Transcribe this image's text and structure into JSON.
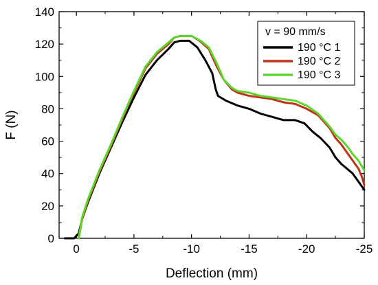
{
  "chart_data": {
    "type": "line",
    "xlabel": "Deflection (mm)",
    "ylabel": "F (N)",
    "xlim": [
      1.5,
      -25
    ],
    "ylim": [
      0,
      140
    ],
    "x_ticks": [
      0,
      -5,
      -10,
      -15,
      -20,
      -25
    ],
    "x_tick_labels": [
      "0",
      "-5",
      "-10",
      "-15",
      "-20",
      "-25"
    ],
    "y_ticks": [
      0,
      20,
      40,
      60,
      80,
      100,
      120,
      140
    ],
    "y_tick_labels": [
      "0",
      "20",
      "40",
      "60",
      "80",
      "100",
      "120",
      "140"
    ],
    "grid": false,
    "legend": {
      "title": "v = 90 mm/s",
      "placement": "top-right",
      "entries": [
        "190 °C 1",
        "190 °C 2",
        "190 °C 3"
      ]
    },
    "series": [
      {
        "name": "190 °C 1",
        "color": "#000000",
        "points": [
          [
            1.0,
            0
          ],
          [
            0.2,
            0
          ],
          [
            -0.2,
            3
          ],
          [
            -0.5,
            12
          ],
          [
            -1,
            22
          ],
          [
            -2,
            40
          ],
          [
            -3,
            56
          ],
          [
            -4,
            72
          ],
          [
            -5,
            87
          ],
          [
            -6,
            101
          ],
          [
            -7,
            110
          ],
          [
            -8,
            117
          ],
          [
            -8.5,
            121
          ],
          [
            -9,
            122
          ],
          [
            -9.8,
            122
          ],
          [
            -10.5,
            118
          ],
          [
            -11.2,
            110
          ],
          [
            -11.8,
            102
          ],
          [
            -12.1,
            92
          ],
          [
            -12.3,
            88
          ],
          [
            -13,
            85
          ],
          [
            -14,
            82
          ],
          [
            -15,
            80
          ],
          [
            -16,
            77
          ],
          [
            -17,
            75
          ],
          [
            -18,
            73
          ],
          [
            -19,
            73
          ],
          [
            -19.8,
            71
          ],
          [
            -20.5,
            66
          ],
          [
            -21.2,
            62
          ],
          [
            -22,
            56
          ],
          [
            -22.5,
            50
          ],
          [
            -23,
            46
          ],
          [
            -23.5,
            43
          ],
          [
            -24,
            40
          ],
          [
            -24.5,
            35
          ],
          [
            -25,
            30
          ]
        ]
      },
      {
        "name": "190 °C 2",
        "color": "#c0311c",
        "points": [
          [
            -0.2,
            0
          ],
          [
            -0.5,
            12
          ],
          [
            -1,
            23
          ],
          [
            -2,
            41
          ],
          [
            -3,
            57
          ],
          [
            -4,
            74
          ],
          [
            -5,
            90
          ],
          [
            -6,
            105
          ],
          [
            -7,
            114
          ],
          [
            -8,
            120
          ],
          [
            -8.5,
            124
          ],
          [
            -9,
            125
          ],
          [
            -10,
            125
          ],
          [
            -10.7,
            122
          ],
          [
            -11.5,
            117
          ],
          [
            -12.2,
            106
          ],
          [
            -12.8,
            98
          ],
          [
            -13.5,
            92
          ],
          [
            -14,
            90
          ],
          [
            -15,
            88
          ],
          [
            -16,
            87
          ],
          [
            -17,
            86
          ],
          [
            -18,
            84
          ],
          [
            -19,
            83
          ],
          [
            -20,
            80
          ],
          [
            -21,
            76
          ],
          [
            -22,
            68
          ],
          [
            -22.5,
            62
          ],
          [
            -23,
            58
          ],
          [
            -23.5,
            53
          ],
          [
            -24,
            48
          ],
          [
            -24.5,
            43
          ],
          [
            -24.8,
            38
          ],
          [
            -25,
            33
          ]
        ]
      },
      {
        "name": "190 °C 3",
        "color": "#5dd62c",
        "points": [
          [
            -0.2,
            0
          ],
          [
            -0.5,
            13
          ],
          [
            -1,
            24
          ],
          [
            -2,
            42
          ],
          [
            -3,
            58
          ],
          [
            -4,
            75
          ],
          [
            -5,
            91
          ],
          [
            -6,
            106
          ],
          [
            -7,
            115
          ],
          [
            -8,
            121
          ],
          [
            -8.5,
            124
          ],
          [
            -9,
            125
          ],
          [
            -10,
            125
          ],
          [
            -10.8,
            122
          ],
          [
            -11.5,
            118
          ],
          [
            -12.2,
            108
          ],
          [
            -12.8,
            98
          ],
          [
            -13.5,
            93
          ],
          [
            -14,
            91
          ],
          [
            -15,
            90
          ],
          [
            -16,
            88
          ],
          [
            -17,
            87
          ],
          [
            -18,
            86
          ],
          [
            -19,
            85
          ],
          [
            -20,
            82
          ],
          [
            -21,
            77
          ],
          [
            -22,
            69
          ],
          [
            -22.5,
            64
          ],
          [
            -23,
            61
          ],
          [
            -23.5,
            57
          ],
          [
            -24,
            52
          ],
          [
            -24.5,
            48
          ],
          [
            -25,
            42
          ]
        ]
      }
    ]
  }
}
